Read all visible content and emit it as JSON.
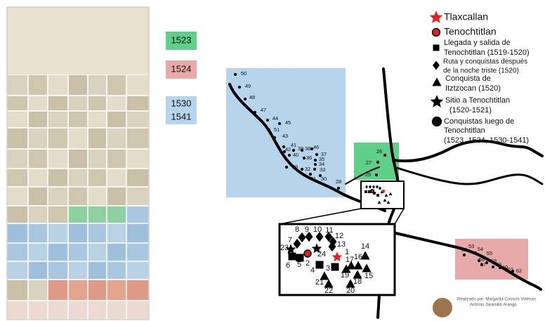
{
  "years": [
    "1523",
    "1524",
    "1530",
    "1541"
  ],
  "legend": [
    {
      "lines": [
        "Tlaxcallan"
      ]
    },
    {
      "lines": [
        "Tenochtitlan"
      ]
    },
    {
      "lines": [
        "Llegada y salida de",
        "Tenochtitlan (1519-1520)"
      ]
    },
    {
      "lines": [
        "Ruta y conquistas después",
        "de la noche triste (1520)"
      ]
    },
    {
      "lines": [
        "Conquista de",
        "Itztzocan (1520)"
      ]
    },
    {
      "lines": [
        "Sitio a Tenochtitlan",
        "(1520-1521)"
      ]
    },
    {
      "lines": [
        "Conquistas luego de",
        "Tenochtitlan",
        "(1523, 1524, 1530-1541)"
      ]
    }
  ],
  "points": [
    "1",
    "2",
    "3",
    "4",
    "5",
    "6",
    "7",
    "8",
    "9",
    "10",
    "11",
    "12",
    "13",
    "14",
    "15",
    "16",
    "17",
    "18",
    "19",
    "20",
    "21",
    "22",
    "23",
    "24",
    "25",
    "26",
    "27",
    "28",
    "29",
    "30",
    "31",
    "32",
    "33",
    "34",
    "35",
    "36",
    "37",
    "38",
    "39",
    "40",
    "41",
    "42",
    "43",
    "44",
    "45",
    "46",
    "47",
    "48",
    "49",
    "50",
    "51",
    "52",
    "53",
    "54",
    "55",
    "56",
    "57",
    "58",
    "59",
    "60",
    "61",
    "62"
  ],
  "credits": [
    "Realizado por: Margarita Cossich Vielman",
    "Antonio Jaramillo Arango"
  ]
}
